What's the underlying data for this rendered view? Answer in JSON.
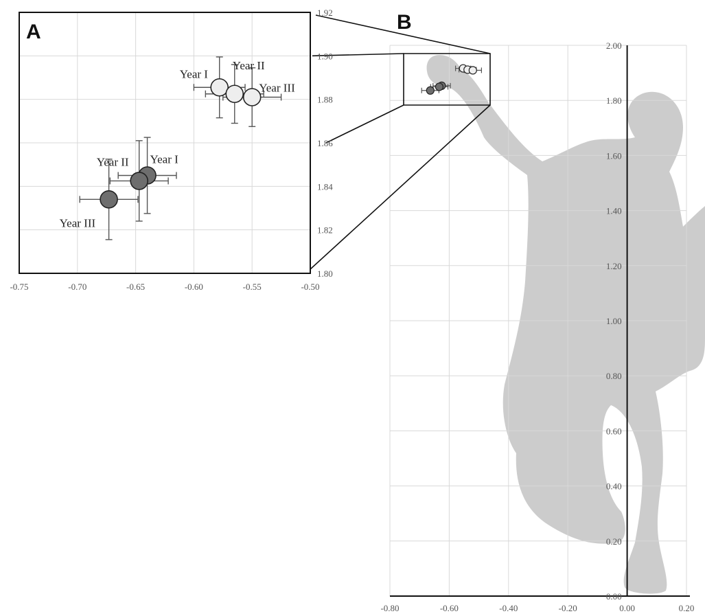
{
  "colors": {
    "grid": "#d8d8d8",
    "frame": "#111111",
    "errorbar": "#555555",
    "light_marker_fill": "#eeeeee",
    "dark_marker_fill": "#6e6e6e",
    "marker_stroke": "#222222",
    "silhouette": "#c9c9c9",
    "axis_line": "#111111"
  },
  "chart_data": [
    {
      "panel": "A",
      "type": "scatter",
      "title": "",
      "xlabel": "",
      "ylabel": "",
      "xlim": [
        -0.75,
        -0.5
      ],
      "ylim": [
        1.8,
        1.92
      ],
      "x_ticks": [
        -0.75,
        -0.7,
        -0.65,
        -0.6,
        -0.55,
        -0.5
      ],
      "x_tick_labels": [
        "-0.75",
        "-0.70",
        "-0.65",
        "-0.60",
        "-0.55",
        "-0.50"
      ],
      "y_ticks": [
        1.8,
        1.82,
        1.84,
        1.86,
        1.88,
        1.9,
        1.92
      ],
      "y_tick_labels": [
        "1.80",
        "1.82",
        "1.84",
        "1.86",
        "1.88",
        "1.90",
        "1.92"
      ],
      "grid": true,
      "series": [
        {
          "style": "light",
          "points": [
            {
              "label": "Year I",
              "x": -0.578,
              "y": 1.8855,
              "x_err": 0.022,
              "y_err": 0.014
            },
            {
              "label": "Year II",
              "x": -0.565,
              "y": 1.8825,
              "x_err": 0.025,
              "y_err": 0.0135
            },
            {
              "label": "Year III",
              "x": -0.55,
              "y": 1.881,
              "x_err": 0.025,
              "y_err": 0.0135
            }
          ]
        },
        {
          "style": "dark",
          "points": [
            {
              "label": "Year I",
              "x": -0.64,
              "y": 1.845,
              "x_err": 0.025,
              "y_err": 0.0175
            },
            {
              "label": "Year II",
              "x": -0.647,
              "y": 1.8425,
              "x_err": 0.025,
              "y_err": 0.0185
            },
            {
              "label": "Year III",
              "x": -0.673,
              "y": 1.834,
              "x_err": 0.025,
              "y_err": 0.0185
            }
          ]
        }
      ]
    },
    {
      "panel": "B",
      "type": "scatter",
      "title": "",
      "xlabel": "",
      "ylabel": "",
      "xlim": [
        -0.8,
        0.2
      ],
      "ylim": [
        0.0,
        2.0
      ],
      "x_ticks": [
        -0.8,
        -0.6,
        -0.4,
        -0.2,
        0.0,
        0.2
      ],
      "x_tick_labels": [
        "-0.80",
        "-0.60",
        "-0.40",
        "-0.20",
        "0.00",
        "0.20"
      ],
      "y_ticks": [
        0.0,
        0.2,
        0.4,
        0.6,
        0.8,
        1.0,
        1.2,
        1.4,
        1.6,
        1.8,
        2.0
      ],
      "y_tick_labels": [
        "0.00",
        "0.20",
        "0.40",
        "0.60",
        "0.80",
        "1.00",
        "1.20",
        "1.40",
        "1.60",
        "1.80",
        "2.00"
      ],
      "grid": true,
      "zoom_box": {
        "x": [
          -0.75,
          -0.5
        ],
        "y": [
          1.8,
          1.92
        ]
      },
      "series": [
        {
          "style": "light",
          "points": [
            {
              "x": -0.578,
              "y": 1.8855,
              "x_err": 0.022
            },
            {
              "x": -0.565,
              "y": 1.8825,
              "x_err": 0.025
            },
            {
              "x": -0.55,
              "y": 1.881,
              "x_err": 0.025
            }
          ]
        },
        {
          "style": "dark",
          "points": [
            {
              "x": -0.64,
              "y": 1.845,
              "x_err": 0.025
            },
            {
              "x": -0.647,
              "y": 1.8425,
              "x_err": 0.025
            },
            {
              "x": -0.673,
              "y": 1.834,
              "x_err": 0.025
            }
          ]
        }
      ]
    }
  ]
}
